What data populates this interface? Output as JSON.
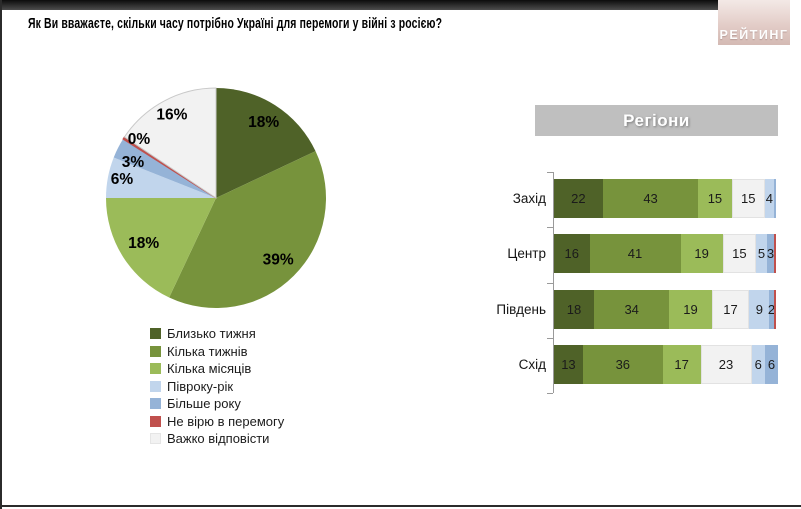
{
  "page": {
    "title": "Як Ви вважаєте, скільки часу потрібно Україні для перемоги у війні з росією?",
    "logo_text": "РЕЙТИНГ"
  },
  "colors": {
    "dark_green": "#4f6228",
    "medium_green": "#77933c",
    "light_green": "#9bbb59",
    "light_blue": "#c1d5ec",
    "blue": "#95b3d7",
    "red": "#c0504d",
    "white": "#f2f2f2",
    "banner_gray": "#bfbfbf"
  },
  "legend": {
    "items": [
      {
        "label": "Близько тижня",
        "color": "dark_green"
      },
      {
        "label": "Кілька тижнів",
        "color": "medium_green"
      },
      {
        "label": "Кілька місяців",
        "color": "light_green"
      },
      {
        "label": "Півроку-рік",
        "color": "light_blue"
      },
      {
        "label": "Більше року",
        "color": "blue"
      },
      {
        "label": "Не вірю в перемогу",
        "color": "red"
      },
      {
        "label": "Важко відповісти",
        "color": "white"
      }
    ]
  },
  "chart_data": [
    {
      "type": "pie",
      "title": "Як Ви вважаєте, скільки часу потрібно Україні для перемоги у війні з росією?",
      "slices": [
        {
          "label": "Близько тижня",
          "value": 18,
          "display": "18%",
          "color": "dark_green"
        },
        {
          "label": "Кілька тижнів",
          "value": 39,
          "display": "39%",
          "color": "medium_green"
        },
        {
          "label": "Кілька місяців",
          "value": 18,
          "display": "18%",
          "color": "light_green"
        },
        {
          "label": "Півроку-рік",
          "value": 6,
          "display": "6%",
          "color": "light_blue"
        },
        {
          "label": "Більше року",
          "value": 3,
          "display": "3%",
          "color": "blue"
        },
        {
          "label": "Не вірю в перемогу",
          "value": 0,
          "display": "0%",
          "color": "red"
        },
        {
          "label": "Важко відповісти",
          "value": 16,
          "display": "16%",
          "color": "white"
        }
      ]
    },
    {
      "type": "stacked-bar",
      "title": "Регіони",
      "categories": [
        "Захід",
        "Центр",
        "Південь",
        "Схід"
      ],
      "series": [
        {
          "name": "Близько тижня",
          "color": "dark_green",
          "values": [
            22,
            16,
            18,
            13
          ]
        },
        {
          "name": "Кілька тижнів",
          "color": "medium_green",
          "values": [
            43,
            41,
            34,
            36
          ]
        },
        {
          "name": "Кілька місяців",
          "color": "light_green",
          "values": [
            15,
            19,
            19,
            17
          ]
        },
        {
          "name": "Важко відповісти",
          "color": "white",
          "values": [
            15,
            15,
            17,
            23
          ]
        },
        {
          "name": "Півроку-рік",
          "color": "light_blue",
          "values": [
            4,
            5,
            9,
            6
          ]
        },
        {
          "name": "Більше року",
          "color": "blue",
          "values": [
            1,
            3,
            2,
            6
          ]
        },
        {
          "name": "Не вірю в перемогу",
          "color": "red",
          "values": [
            0,
            1,
            1,
            0
          ]
        }
      ],
      "xlim": [
        0,
        100
      ],
      "value_labels_shown_if_at_least": 2
    }
  ]
}
